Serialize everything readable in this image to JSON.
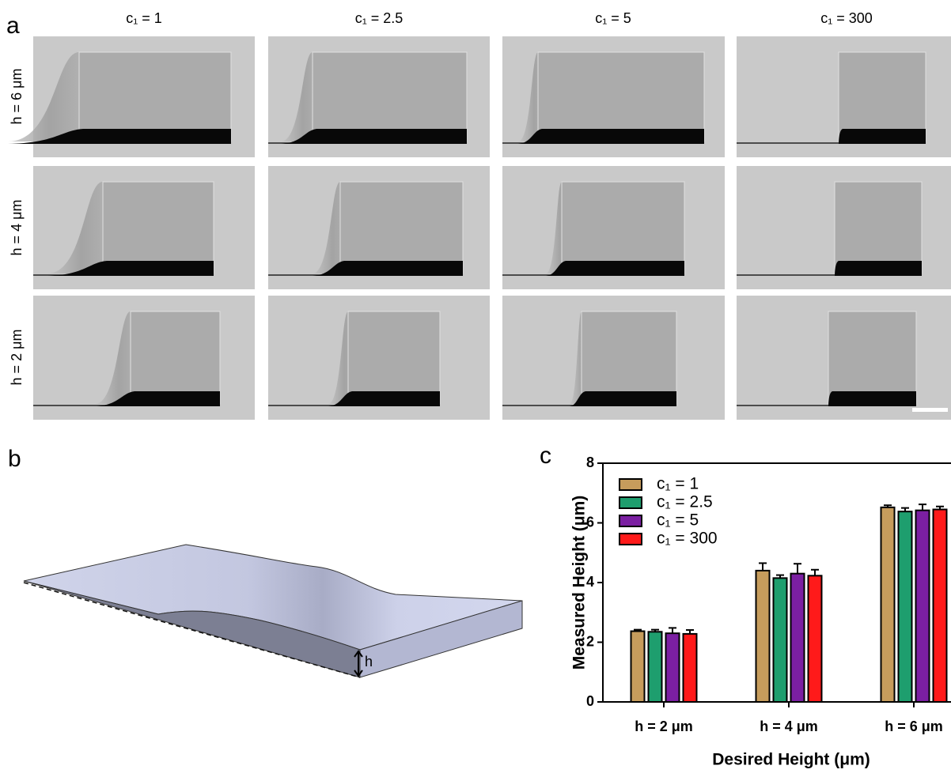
{
  "panel_labels": [
    "a",
    "b",
    "c"
  ],
  "panel_a": {
    "columns": [
      "c₁ = 1",
      "c₁ = 2.5",
      "c₁ = 5",
      "c₁ = 300"
    ],
    "rows": [
      "h = 6 μm",
      "h = 4 μm",
      "h = 2 μm"
    ]
  },
  "panel_b": {
    "dimension_label": "h"
  },
  "chart_data": {
    "type": "bar",
    "xlabel": "Desired Height (μm)",
    "ylabel": "Measured Height (μm)",
    "categories": [
      "h = 2 μm",
      "h = 4 μm",
      "h = 6 μm"
    ],
    "series": [
      {
        "name": "c₁ = 1",
        "color": "#c69c5c",
        "values": [
          2.37,
          4.4,
          6.52
        ],
        "errors": [
          0.05,
          0.25,
          0.07
        ]
      },
      {
        "name": "c₁ = 2.5",
        "color": "#1e9e6e",
        "values": [
          2.35,
          4.15,
          6.38
        ],
        "errors": [
          0.07,
          0.1,
          0.12
        ]
      },
      {
        "name": "c₁ = 5",
        "color": "#7b1fa2",
        "values": [
          2.3,
          4.3,
          6.42
        ],
        "errors": [
          0.18,
          0.33,
          0.2
        ]
      },
      {
        "name": "c₁ = 300",
        "color": "#ff1a1a",
        "values": [
          2.28,
          4.23,
          6.45
        ],
        "errors": [
          0.13,
          0.2,
          0.1
        ]
      }
    ],
    "ylim": [
      0,
      8
    ],
    "yticks": [
      0,
      2,
      4,
      6,
      8
    ],
    "legend": "upper-left"
  }
}
